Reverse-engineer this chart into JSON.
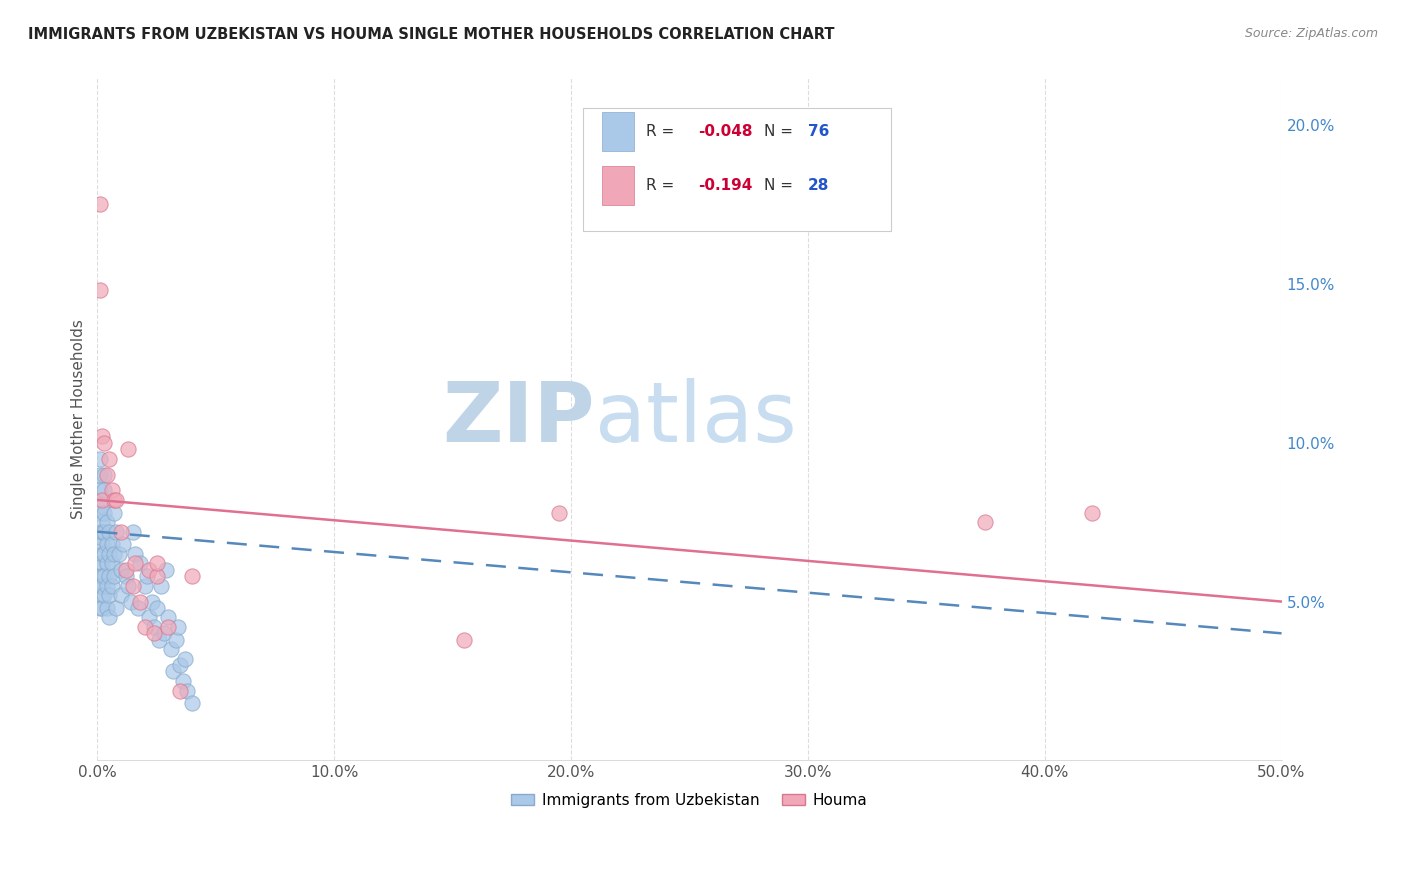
{
  "title": "IMMIGRANTS FROM UZBEKISTAN VS HOUMA SINGLE MOTHER HOUSEHOLDS CORRELATION CHART",
  "source": "Source: ZipAtlas.com",
  "ylabel": "Single Mother Households",
  "xlim": [
    0.0,
    0.5
  ],
  "ylim": [
    0.0,
    0.215
  ],
  "xticks": [
    0.0,
    0.1,
    0.2,
    0.3,
    0.4,
    0.5
  ],
  "xtick_labels": [
    "0.0%",
    "10.0%",
    "20.0%",
    "30.0%",
    "40.0%",
    "50.0%"
  ],
  "yticks_right": [
    0.05,
    0.1,
    0.15,
    0.2
  ],
  "ytick_labels_right": [
    "5.0%",
    "10.0%",
    "15.0%",
    "20.0%"
  ],
  "series1_label": "Immigrants from Uzbekistan",
  "series1_color": "#aac8e8",
  "series1_edge": "#88aacc",
  "series1_R": -0.048,
  "series1_N": 76,
  "series2_label": "Houma",
  "series2_color": "#f0a8b8",
  "series2_edge": "#d87890",
  "series2_R": -0.194,
  "series2_N": 28,
  "trend1_color": "#5588bb",
  "trend2_color": "#e07090",
  "legend_R_color": "#cc0033",
  "legend_N_color": "#2255cc",
  "watermark_zip_color": "#c0d4e8",
  "watermark_atlas_color": "#c8ddf0",
  "series1_x": [
    0.001,
    0.001,
    0.001,
    0.001,
    0.001,
    0.001,
    0.001,
    0.001,
    0.001,
    0.002,
    0.002,
    0.002,
    0.002,
    0.002,
    0.002,
    0.002,
    0.002,
    0.002,
    0.002,
    0.002,
    0.003,
    0.003,
    0.003,
    0.003,
    0.003,
    0.003,
    0.003,
    0.004,
    0.004,
    0.004,
    0.004,
    0.004,
    0.005,
    0.005,
    0.005,
    0.005,
    0.005,
    0.006,
    0.006,
    0.006,
    0.007,
    0.007,
    0.007,
    0.008,
    0.008,
    0.009,
    0.01,
    0.01,
    0.011,
    0.012,
    0.013,
    0.014,
    0.015,
    0.016,
    0.017,
    0.018,
    0.02,
    0.021,
    0.022,
    0.023,
    0.024,
    0.025,
    0.026,
    0.027,
    0.028,
    0.029,
    0.03,
    0.031,
    0.032,
    0.033,
    0.034,
    0.035,
    0.036,
    0.037,
    0.038,
    0.04
  ],
  "series1_y": [
    0.055,
    0.062,
    0.072,
    0.078,
    0.085,
    0.09,
    0.095,
    0.058,
    0.048,
    0.068,
    0.075,
    0.08,
    0.062,
    0.058,
    0.052,
    0.07,
    0.065,
    0.072,
    0.048,
    0.055,
    0.09,
    0.085,
    0.078,
    0.072,
    0.065,
    0.058,
    0.052,
    0.075,
    0.068,
    0.062,
    0.055,
    0.048,
    0.072,
    0.065,
    0.058,
    0.052,
    0.045,
    0.068,
    0.062,
    0.055,
    0.078,
    0.065,
    0.058,
    0.072,
    0.048,
    0.065,
    0.06,
    0.052,
    0.068,
    0.058,
    0.055,
    0.05,
    0.072,
    0.065,
    0.048,
    0.062,
    0.055,
    0.058,
    0.045,
    0.05,
    0.042,
    0.048,
    0.038,
    0.055,
    0.04,
    0.06,
    0.045,
    0.035,
    0.028,
    0.038,
    0.042,
    0.03,
    0.025,
    0.032,
    0.022,
    0.018
  ],
  "series2_x": [
    0.001,
    0.001,
    0.002,
    0.002,
    0.003,
    0.004,
    0.005,
    0.006,
    0.007,
    0.008,
    0.01,
    0.012,
    0.013,
    0.015,
    0.016,
    0.018,
    0.02,
    0.022,
    0.024,
    0.025,
    0.025,
    0.03,
    0.035,
    0.04,
    0.155,
    0.195,
    0.375,
    0.42
  ],
  "series2_y": [
    0.175,
    0.148,
    0.102,
    0.082,
    0.1,
    0.09,
    0.095,
    0.085,
    0.082,
    0.082,
    0.072,
    0.06,
    0.098,
    0.055,
    0.062,
    0.05,
    0.042,
    0.06,
    0.04,
    0.058,
    0.062,
    0.042,
    0.022,
    0.058,
    0.038,
    0.078,
    0.075,
    0.078
  ],
  "trend1_x0": 0.0,
  "trend1_y0": 0.072,
  "trend1_x1": 0.5,
  "trend1_y1": 0.04,
  "trend2_x0": 0.0,
  "trend2_y0": 0.082,
  "trend2_x1": 0.5,
  "trend2_y1": 0.05
}
